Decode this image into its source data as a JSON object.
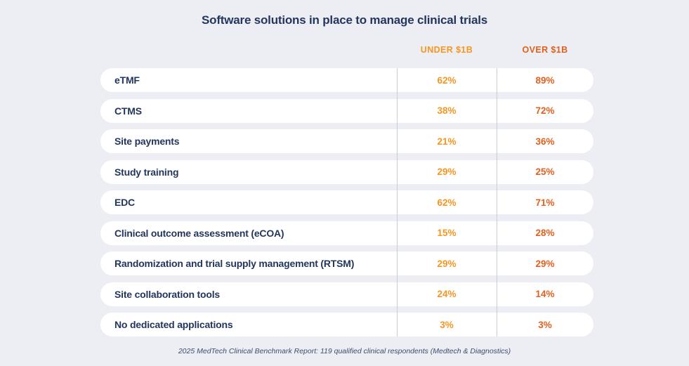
{
  "title": "Software solutions in place to manage clinical trials",
  "columns": {
    "under_label": "UNDER $1B",
    "over_label": "OVER $1B"
  },
  "rows": [
    {
      "label": "eTMF",
      "under": "62%",
      "over": "89%"
    },
    {
      "label": "CTMS",
      "under": "38%",
      "over": "72%"
    },
    {
      "label": "Site payments",
      "under": "21%",
      "over": "36%"
    },
    {
      "label": "Study training",
      "under": "29%",
      "over": "25%"
    },
    {
      "label": "EDC",
      "under": "62%",
      "over": "71%"
    },
    {
      "label": "Clinical outcome assessment (eCOA)",
      "under": "15%",
      "over": "28%"
    },
    {
      "label": "Randomization and trial supply management (RTSM)",
      "under": "29%",
      "over": "29%"
    },
    {
      "label": "Site collaboration tools",
      "under": "24%",
      "over": "14%"
    },
    {
      "label": "No dedicated applications",
      "under": "3%",
      "over": "3%"
    }
  ],
  "footer": "2025 MedTech Clinical Benchmark Report: 119 qualified clinical respondents (Medtech & Diagnostics)",
  "colors": {
    "page_bg": "#EDEEF4",
    "row_bg": "#FFFFFF",
    "navy_text": "#23365D",
    "under_accent": "#F7951F",
    "over_accent": "#E2601C",
    "divider": "#C7CCD9",
    "footer_text": "#3E4C6D"
  },
  "chart_data": {
    "type": "table",
    "title": "Software solutions in place to manage clinical trials",
    "categories": [
      "eTMF",
      "CTMS",
      "Site payments",
      "Study training",
      "EDC",
      "Clinical outcome assessment (eCOA)",
      "Randomization and trial supply management (RTSM)",
      "Site collaboration tools",
      "No dedicated applications"
    ],
    "series": [
      {
        "name": "UNDER $1B",
        "values": [
          62,
          38,
          21,
          29,
          62,
          15,
          29,
          24,
          3
        ]
      },
      {
        "name": "OVER $1B",
        "values": [
          89,
          72,
          36,
          25,
          71,
          28,
          29,
          14,
          3
        ]
      }
    ],
    "unit": "%",
    "legend_position": "top",
    "source_note": "2025 MedTech Clinical Benchmark Report: 119 qualified clinical respondents (Medtech & Diagnostics)"
  }
}
